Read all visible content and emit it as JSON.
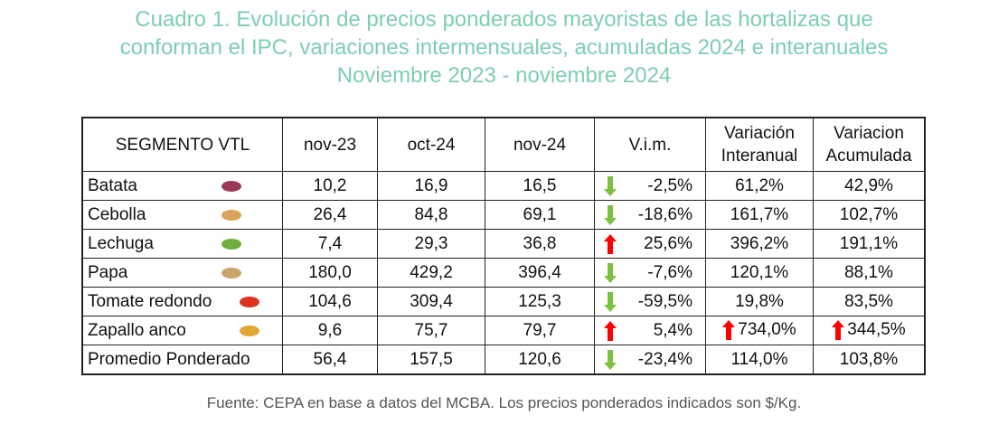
{
  "title": {
    "line1": "Cuadro 1. Evolución de precios ponderados mayoristas de las hortalizas que",
    "line2": "conforman el IPC, variaciones intermensuales, acumuladas 2024 e interanuales",
    "line3": "Noviembre 2023 - noviembre 2024"
  },
  "headers": [
    "SEGMENTO VTL",
    "nov-23",
    "oct-24",
    "nov-24",
    "V.i.m.",
    "Variación Interanual",
    "Variacion Acumulada"
  ],
  "rows": [
    {
      "name": "Batata",
      "icon": "sweet-potato-icon",
      "color": "#9a3a55",
      "nov23": "10,2",
      "oct24": "16,9",
      "nov24": "16,5",
      "vim": "-2,5%",
      "dir": "down",
      "inter": "61,2%",
      "acum": "42,9%"
    },
    {
      "name": "Cebolla",
      "icon": "onion-icon",
      "color": "#d9a45a",
      "nov23": "26,4",
      "oct24": "84,8",
      "nov24": "69,1",
      "vim": "-18,6%",
      "dir": "down",
      "inter": "161,7%",
      "acum": "102,7%"
    },
    {
      "name": "Lechuga",
      "icon": "lettuce-icon",
      "color": "#6fae3c",
      "nov23": "7,4",
      "oct24": "29,3",
      "nov24": "36,8",
      "vim": "25,6%",
      "dir": "up",
      "inter": "396,2%",
      "acum": "191,1%"
    },
    {
      "name": "Papa",
      "icon": "potato-icon",
      "color": "#c9a46a",
      "nov23": "180,0",
      "oct24": "429,2",
      "nov24": "396,4",
      "vim": "-7,6%",
      "dir": "down",
      "inter": "120,1%",
      "acum": "88,1%"
    },
    {
      "name": "Tomate redondo",
      "icon": "tomato-icon",
      "color": "#e0301e",
      "nov23": "104,6",
      "oct24": "309,4",
      "nov24": "125,3",
      "vim": "-59,5%",
      "dir": "down",
      "inter": "19,8%",
      "acum": "83,5%"
    },
    {
      "name": "Zapallo anco",
      "icon": "squash-icon",
      "color": "#e3a632",
      "nov23": "9,6",
      "oct24": "75,7",
      "nov24": "79,7",
      "vim": "5,4%",
      "dir": "up",
      "inter": "734,0%",
      "acum": "344,5%",
      "extra_arrows": true
    },
    {
      "name": "Promedio Ponderado",
      "nov23": "56,4",
      "oct24": "157,5",
      "nov24": "120,6",
      "vim": "-23,4%",
      "dir": "down",
      "inter": "114,0%",
      "acum": "103,8%"
    }
  ],
  "colors": {
    "title": "#7dcfae",
    "up": "#ff0000",
    "down": "#7cc142"
  },
  "footer": "Fuente: CEPA en base a datos del MCBA. Los precios ponderados indicados son $/Kg."
}
